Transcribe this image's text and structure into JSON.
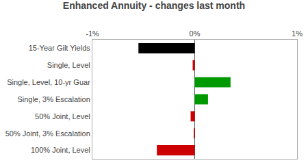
{
  "chart_data": {
    "type": "bar",
    "orientation": "horizontal",
    "title": "Enhanced Annuity - changes last month",
    "categories": [
      "15-Year Gilt Yields",
      "Single, Level",
      "Single, Level, 10-yr Guar",
      "Single, 3% Escalation",
      "50% Joint, Level",
      "50% Joint, 3% Escalation",
      "100% Joint, Level"
    ],
    "values": [
      -0.55,
      -0.02,
      0.35,
      0.13,
      -0.04,
      -0.01,
      -0.37
    ],
    "colors": [
      "#000000",
      "#cc0000",
      "#009900",
      "#009900",
      "#cc0000",
      "#cc0000",
      "#cc0000"
    ],
    "xlim": [
      -1.0,
      1.0
    ],
    "xticks": [
      {
        "value": -1.0,
        "label": "-1%"
      },
      {
        "value": 0.0,
        "label": "0%"
      },
      {
        "value": 1.0,
        "label": "1%"
      }
    ],
    "grid": false
  }
}
